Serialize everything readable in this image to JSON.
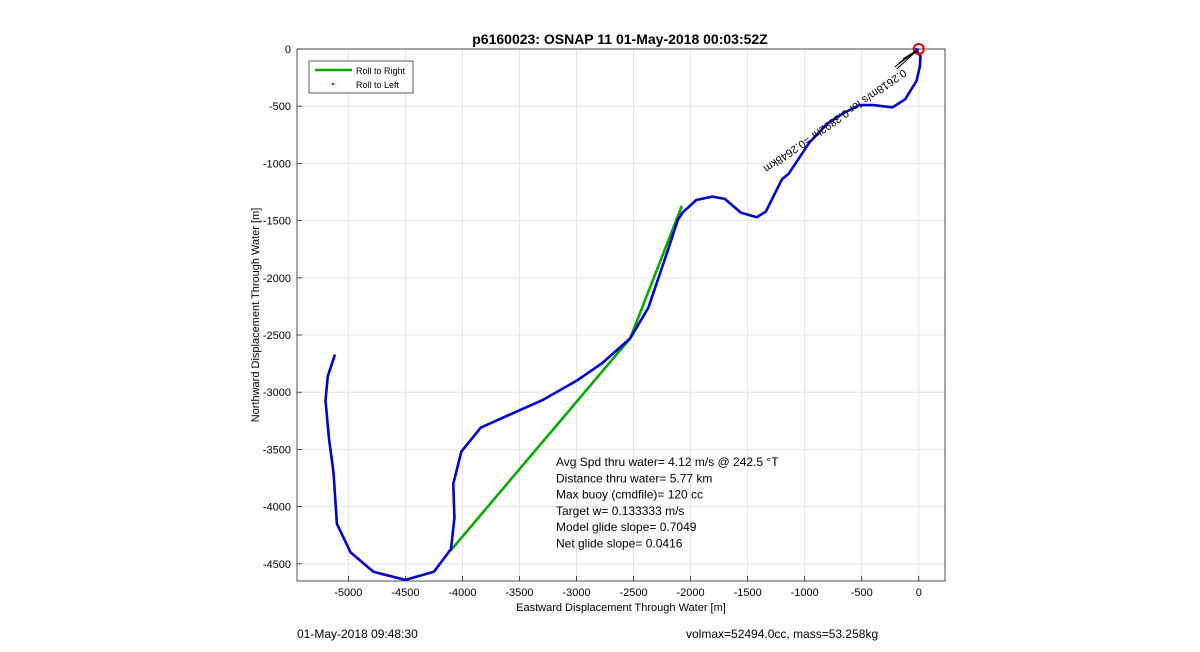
{
  "chart_data": {
    "type": "line",
    "title": "p6160023: OSNAP 11 01-May-2018 00:03:52Z",
    "xlabel": "Eastward Displacement Through Water [m]",
    "ylabel": "Northward Displacement Through Water [m]",
    "xlim": [
      -5450,
      230
    ],
    "ylim": [
      -4650,
      0
    ],
    "xticks": [
      -5000,
      -4500,
      -4000,
      -3500,
      -3000,
      -2500,
      -2000,
      -1500,
      -1000,
      -500,
      0
    ],
    "yticks": [
      0,
      -500,
      -1000,
      -1500,
      -2000,
      -2500,
      -3000,
      -3500,
      -4000,
      -4500
    ],
    "grid": true,
    "legend_position": "top-left",
    "legend": [
      {
        "label": "Roll to Right",
        "color": "#00aa00"
      },
      {
        "label": "Roll to Left",
        "color": "#ff0000"
      }
    ],
    "series": [
      {
        "name": "Roll to Right",
        "color": "#00aa00",
        "x": [
          -4100,
          -2530,
          -2080
        ],
        "y": [
          -4380,
          -2530,
          -1380
        ]
      },
      {
        "color": "#0000cc",
        "x": [
          -5120,
          -5180,
          -5200,
          -5170,
          -5130,
          -5100,
          -4980,
          -4780,
          -4500,
          -4250,
          -4100,
          -4070,
          -4080,
          -4010,
          -3840,
          -3550,
          -3300,
          -3000,
          -2780,
          -2530,
          -2370,
          -2200,
          -2110,
          -2070,
          -1950,
          -1810,
          -1700,
          -1560,
          -1420,
          -1340,
          -1270,
          -1200,
          -1140,
          -960,
          -800,
          -660,
          -520,
          -400,
          -230,
          -120,
          -20,
          10,
          15,
          -10,
          -20
        ],
        "y": [
          -2680,
          -2860,
          -3070,
          -3400,
          -3700,
          -4150,
          -4400,
          -4570,
          -4640,
          -4570,
          -4370,
          -4100,
          -3800,
          -3520,
          -3310,
          -3180,
          -3070,
          -2900,
          -2750,
          -2530,
          -2260,
          -1760,
          -1490,
          -1430,
          -1320,
          -1290,
          -1310,
          -1430,
          -1470,
          -1420,
          -1280,
          -1140,
          -1090,
          -820,
          -650,
          -560,
          -490,
          -490,
          -510,
          -440,
          -280,
          -150,
          -60,
          -30,
          0
        ]
      }
    ],
    "annotations": [
      "Avg Spd thru water=  4.12 m/s @ 242.5 °T",
      "Distance thru water=  5.77 km",
      "Max buoy (cmdfile)= 120 cc",
      "Target w= 0.133333 m/s",
      "Model glide slope= 0.7049",
      "Net glide slope= 0.0416"
    ],
    "rotated_label": "0.2618m/s for 0.3892hr =0.2648km",
    "markers": {
      "start_circle": {
        "x": 0,
        "y": 0,
        "color": "#dd0000"
      }
    }
  },
  "footer": {
    "left": "01-May-2018 09:48:30",
    "right": "volmax=52494.0cc, mass=53.258kg"
  }
}
